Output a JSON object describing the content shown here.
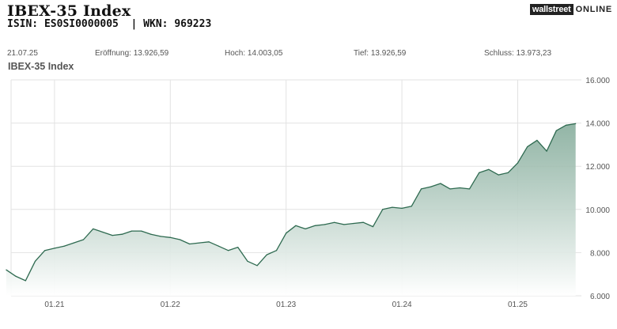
{
  "header": {
    "title": "IBEX-35 Index",
    "subtitle": "ISIN: ES0SI0000005  | WKN: 969223",
    "logo_part1": "wallstreet",
    "logo_part2": "ONLINE"
  },
  "stats": {
    "date": "21.07.25",
    "open": "Eröffnung: 13.926,59",
    "high": "Hoch: 14.003,05",
    "low": "Tief: 13.926,59",
    "close": "Schluss: 13.973,23"
  },
  "colors": {
    "line": "#2e6a50",
    "fill_top": "#7fa896",
    "fill_bottom": "#ffffff",
    "grid": "#e2e2e2"
  },
  "chart_data": {
    "type": "area",
    "title": "IBEX-35 Index",
    "xlabel": "",
    "ylabel": "",
    "x_ticks": [
      "01.21",
      "01.22",
      "01.23",
      "01.24",
      "01.25"
    ],
    "y_ticks": [
      "6.000",
      "8.000",
      "10.000",
      "12.000",
      "14.000",
      "16.000"
    ],
    "ylim": [
      6000,
      16000
    ],
    "xlim": [
      "2020-08",
      "2025-07"
    ],
    "grid": true,
    "legend": "none",
    "series": [
      {
        "x": [
          "2020-08",
          "2020-09",
          "2020-10",
          "2020-11",
          "2020-12",
          "2021-01",
          "2021-02",
          "2021-03",
          "2021-04",
          "2021-05",
          "2021-06",
          "2021-07",
          "2021-08",
          "2021-09",
          "2021-10",
          "2021-11",
          "2021-12",
          "2022-01",
          "2022-02",
          "2022-03",
          "2022-04",
          "2022-05",
          "2022-06",
          "2022-07",
          "2022-08",
          "2022-09",
          "2022-10",
          "2022-11",
          "2022-12",
          "2023-01",
          "2023-02",
          "2023-03",
          "2023-04",
          "2023-05",
          "2023-06",
          "2023-07",
          "2023-08",
          "2023-09",
          "2023-10",
          "2023-11",
          "2023-12",
          "2024-01",
          "2024-02",
          "2024-03",
          "2024-04",
          "2024-05",
          "2024-06",
          "2024-07",
          "2024-08",
          "2024-09",
          "2024-10",
          "2024-11",
          "2024-12",
          "2025-01",
          "2025-02",
          "2025-03",
          "2025-04",
          "2025-05",
          "2025-06",
          "2025-07"
        ],
        "values": [
          7200,
          6900,
          6700,
          7600,
          8100,
          8200,
          8300,
          8450,
          8600,
          9100,
          8950,
          8800,
          8850,
          9000,
          9000,
          8850,
          8750,
          8700,
          8600,
          8400,
          8450,
          8500,
          8300,
          8100,
          8250,
          7600,
          7400,
          7900,
          8100,
          8900,
          9250,
          9100,
          9250,
          9300,
          9400,
          9300,
          9350,
          9400,
          9200,
          10000,
          10100,
          10050,
          10150,
          10950,
          11050,
          11200,
          10950,
          11000,
          10950,
          11700,
          11850,
          11600,
          11700,
          12150,
          12900,
          13200,
          12700,
          13650,
          13900,
          13970
        ]
      }
    ]
  }
}
